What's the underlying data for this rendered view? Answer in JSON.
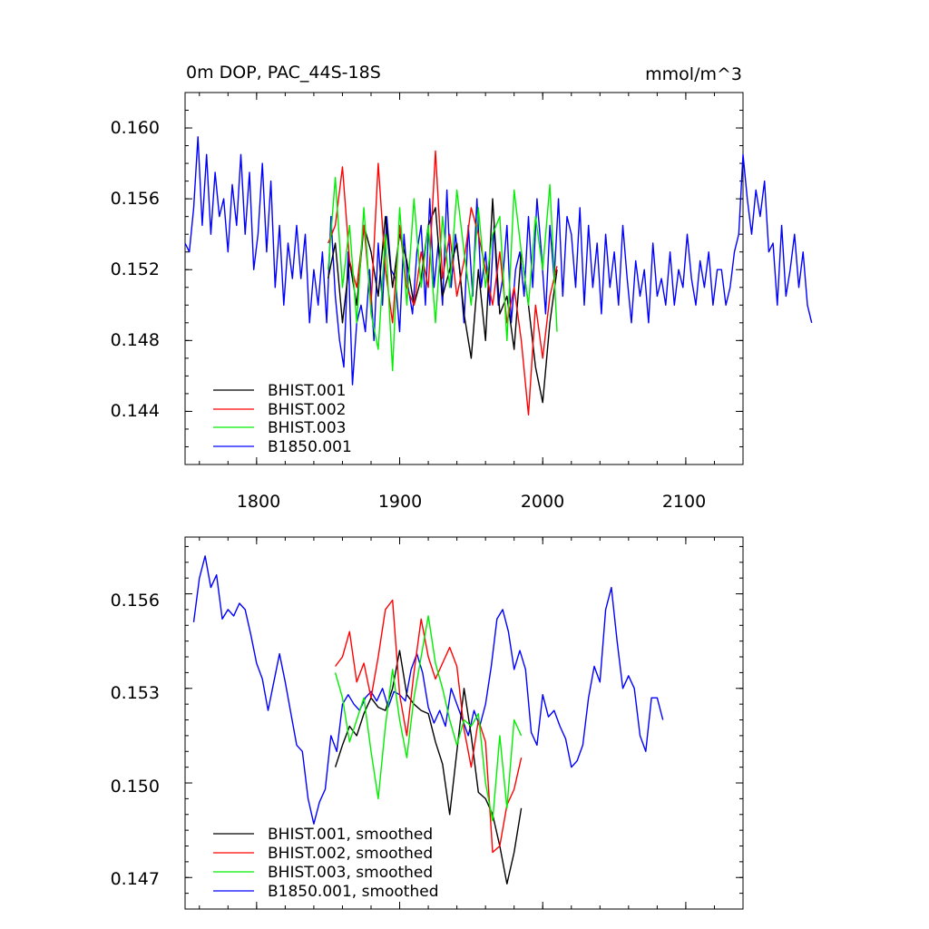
{
  "chart_data": [
    {
      "type": "line",
      "title": "0m DOP, PAC_44S-18S",
      "units": "mmol/m^3",
      "xlim": [
        1750,
        2140
      ],
      "ylim": [
        0.141,
        0.162
      ],
      "xticks": [
        1800,
        1900,
        2000,
        2100
      ],
      "xtick_labels": [
        "1800",
        "1900",
        "2000",
        "2100"
      ],
      "yticks": [
        0.144,
        0.148,
        0.152,
        0.156,
        0.16
      ],
      "ytick_labels": [
        "0.144",
        "0.148",
        "0.152",
        "0.156",
        "0.160"
      ],
      "legend_position": "bottom-left",
      "series": [
        {
          "name": "BHIST.001",
          "color": "#000000",
          "x_start": 1850,
          "x_step": 5,
          "values": [
            0.1515,
            0.1535,
            0.149,
            0.1525,
            0.15,
            0.1545,
            0.153,
            0.1505,
            0.155,
            0.151,
            0.154,
            0.1525,
            0.15,
            0.1515,
            0.1545,
            0.1555,
            0.1505,
            0.152,
            0.1535,
            0.1495,
            0.147,
            0.152,
            0.148,
            0.156,
            0.1495,
            0.1505,
            0.1475,
            0.153,
            0.15,
            0.1465,
            0.1445,
            0.149,
            0.152
          ]
        },
        {
          "name": "BHIST.002",
          "color": "#ff0000",
          "x_start": 1850,
          "x_step": 5,
          "values": [
            0.1535,
            0.1545,
            0.1578,
            0.1525,
            0.151,
            0.1545,
            0.15,
            0.158,
            0.152,
            0.149,
            0.1545,
            0.151,
            0.15,
            0.153,
            0.151,
            0.1587,
            0.1515,
            0.154,
            0.1505,
            0.1525,
            0.1555,
            0.154,
            0.152,
            0.15,
            0.153,
            0.149,
            0.151,
            0.148,
            0.1438,
            0.15,
            0.147,
            0.1505,
            0.1522
          ]
        },
        {
          "name": "BHIST.003",
          "color": "#00ee00",
          "x_start": 1850,
          "x_step": 5,
          "values": [
            0.152,
            0.1572,
            0.151,
            0.1545,
            0.149,
            0.1555,
            0.1495,
            0.1475,
            0.154,
            0.1463,
            0.1555,
            0.15,
            0.156,
            0.151,
            0.1545,
            0.149,
            0.155,
            0.151,
            0.1565,
            0.153,
            0.15,
            0.1555,
            0.151,
            0.154,
            0.155,
            0.148,
            0.1565,
            0.153,
            0.15,
            0.155,
            0.152,
            0.1568,
            0.1485
          ]
        },
        {
          "name": "B1850.001",
          "color": "#0000ff",
          "x_start": 1750,
          "x_step": 3,
          "values": [
            0.1535,
            0.153,
            0.1555,
            0.1595,
            0.1545,
            0.1585,
            0.154,
            0.1575,
            0.155,
            0.156,
            0.153,
            0.1568,
            0.1545,
            0.1585,
            0.154,
            0.1575,
            0.152,
            0.154,
            0.158,
            0.153,
            0.157,
            0.151,
            0.1545,
            0.15,
            0.1535,
            0.1515,
            0.1545,
            0.1515,
            0.154,
            0.149,
            0.152,
            0.15,
            0.153,
            0.149,
            0.155,
            0.1505,
            0.148,
            0.1465,
            0.153,
            0.1455,
            0.149,
            0.15,
            0.1485,
            0.152,
            0.148,
            0.1535,
            0.15,
            0.155,
            0.152,
            0.1515,
            0.1485,
            0.154,
            0.151,
            0.1495,
            0.153,
            0.1545,
            0.15,
            0.156,
            0.151,
            0.1535,
            0.15,
            0.1565,
            0.151,
            0.154,
            0.152,
            0.149,
            0.1545,
            0.1505,
            0.156,
            0.151,
            0.153,
            0.15,
            0.1545,
            0.15,
            0.1515,
            0.1545,
            0.149,
            0.152,
            0.153,
            0.1505,
            0.155,
            0.151,
            0.156,
            0.153,
            0.1495,
            0.1545,
            0.1515,
            0.156,
            0.1505,
            0.155,
            0.154,
            0.151,
            0.1555,
            0.15,
            0.1545,
            0.151,
            0.1535,
            0.1495,
            0.154,
            0.151,
            0.153,
            0.15,
            0.1545,
            0.1515,
            0.149,
            0.1525,
            0.1505,
            0.152,
            0.149,
            0.1535,
            0.1505,
            0.1515,
            0.15,
            0.153,
            0.15,
            0.152,
            0.151,
            0.154,
            0.1515,
            0.15,
            0.1525,
            0.151,
            0.153,
            0.15,
            0.152,
            0.152,
            0.15,
            0.151,
            0.153,
            0.154,
            0.1585,
            0.156,
            0.154,
            0.1565,
            0.155,
            0.157,
            0.153,
            0.1535,
            0.15,
            0.1545,
            0.1505,
            0.152,
            0.154,
            0.151,
            0.153,
            0.15,
            0.149
          ]
        }
      ]
    },
    {
      "type": "line",
      "title": "",
      "xlim": [
        1750,
        2140
      ],
      "ylim": [
        0.146,
        0.1578
      ],
      "xticks": [
        1800,
        1900,
        2000,
        2100
      ],
      "yticks": [
        0.147,
        0.15,
        0.153,
        0.156
      ],
      "ytick_labels": [
        "0.147",
        "0.150",
        "0.153",
        "0.156"
      ],
      "legend_position": "bottom-left",
      "series": [
        {
          "name": "BHIST.001, smoothed",
          "color": "#000000",
          "x_start": 1855,
          "x_step": 5,
          "values": [
            0.1505,
            0.1512,
            0.1518,
            0.1515,
            0.1522,
            0.1527,
            0.1524,
            0.1523,
            0.153,
            0.1542,
            0.1528,
            0.1525,
            0.1523,
            0.1522,
            0.1513,
            0.1506,
            0.149,
            0.151,
            0.153,
            0.1515,
            0.1497,
            0.1495,
            0.149,
            0.148,
            0.1468,
            0.1478,
            0.1492
          ]
        },
        {
          "name": "BHIST.002, smoothed",
          "color": "#ff0000",
          "x_start": 1855,
          "x_step": 5,
          "values": [
            0.1537,
            0.154,
            0.1548,
            0.1532,
            0.1538,
            0.1527,
            0.154,
            0.1555,
            0.1558,
            0.1528,
            0.1515,
            0.1535,
            0.1552,
            0.154,
            0.1533,
            0.1538,
            0.1543,
            0.1537,
            0.1517,
            0.1505,
            0.152,
            0.1513,
            0.1478,
            0.148,
            0.1493,
            0.1498,
            0.1508
          ]
        },
        {
          "name": "BHIST.003, smoothed",
          "color": "#00ee00",
          "x_start": 1855,
          "x_step": 5,
          "values": [
            0.1535,
            0.1527,
            0.1513,
            0.152,
            0.1527,
            0.151,
            0.1495,
            0.1518,
            0.1536,
            0.152,
            0.1508,
            0.1527,
            0.154,
            0.1553,
            0.1538,
            0.153,
            0.152,
            0.1512,
            0.152,
            0.1518,
            0.1522,
            0.15,
            0.1488,
            0.1515,
            0.1492,
            0.152,
            0.1515
          ]
        },
        {
          "name": "B1850.001, smoothed",
          "color": "#0000ff",
          "x_start": 1756,
          "x_step": 4,
          "values": [
            0.1551,
            0.1565,
            0.1572,
            0.1562,
            0.1566,
            0.1552,
            0.1555,
            0.1553,
            0.1557,
            0.1555,
            0.1547,
            0.1538,
            0.1533,
            0.1523,
            0.1532,
            0.1541,
            0.1532,
            0.1522,
            0.1512,
            0.151,
            0.1495,
            0.1487,
            0.1494,
            0.1498,
            0.1515,
            0.151,
            0.1525,
            0.1528,
            0.1525,
            0.1523,
            0.1527,
            0.1529,
            0.1526,
            0.153,
            0.1524,
            0.1529,
            0.1528,
            0.1526,
            0.1536,
            0.1541,
            0.1535,
            0.1524,
            0.1519,
            0.1523,
            0.1518,
            0.153,
            0.1525,
            0.152,
            0.1515,
            0.1523,
            0.1518,
            0.1525,
            0.1537,
            0.1552,
            0.1555,
            0.1548,
            0.1536,
            0.1542,
            0.1536,
            0.1516,
            0.1512,
            0.1528,
            0.1521,
            0.1523,
            0.1518,
            0.1514,
            0.1505,
            0.1507,
            0.1512,
            0.1527,
            0.1537,
            0.1532,
            0.1555,
            0.1562,
            0.1545,
            0.153,
            0.1534,
            0.153,
            0.1515,
            0.151,
            0.1527,
            0.1527,
            0.152
          ]
        }
      ]
    }
  ]
}
